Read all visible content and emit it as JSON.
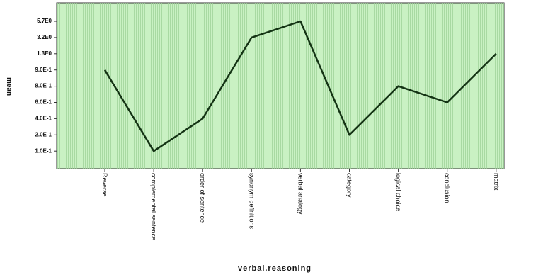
{
  "chart_data": {
    "type": "line",
    "x_label": "verbal.reasoning",
    "y_label": "mean",
    "categories": [
      "Reverse",
      "complemental sentence",
      "order of sentence",
      "synonym definitions",
      "verbal analogy",
      "category",
      "logical choice",
      "conclusion",
      "matrix"
    ],
    "series": [
      {
        "name": "mean",
        "color": "#143314",
        "values": [
          0.9,
          0.1,
          0.4,
          3.2,
          5.7,
          0.2,
          0.8,
          0.6,
          1.3
        ]
      }
    ],
    "yscale": "ordinal",
    "yticks": [
      {
        "value": 5.7,
        "label": "5.7E0"
      },
      {
        "value": 3.2,
        "label": "3.2E0"
      },
      {
        "value": 1.3,
        "label": "1.3E0"
      },
      {
        "value": 0.9,
        "label": "9.0E-1"
      },
      {
        "value": 0.8,
        "label": "8.0E-1"
      },
      {
        "value": 0.6,
        "label": "6.0E-1"
      },
      {
        "value": 0.4,
        "label": "4.0E-1"
      },
      {
        "value": 0.2,
        "label": "2.0E-1"
      },
      {
        "value": 0.1,
        "label": "1.0E-1"
      }
    ],
    "background": "#c9f1c3"
  }
}
